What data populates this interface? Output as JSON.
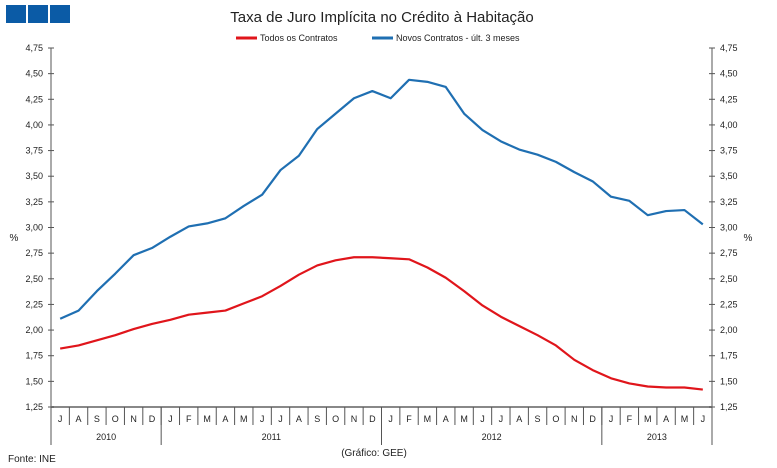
{
  "chart_data": {
    "type": "line",
    "title": "Taxa de Juro Implícita no Crédito à Habitação",
    "ylabel_left": "%",
    "ylabel_right": "%",
    "ylim": [
      1.25,
      4.75
    ],
    "yticks": [
      "1,25",
      "1,50",
      "1,75",
      "2,00",
      "2,25",
      "2,50",
      "2,75",
      "3,00",
      "3,25",
      "3,50",
      "3,75",
      "4,00",
      "4,25",
      "4,50",
      "4,75"
    ],
    "months": [
      "J",
      "A",
      "S",
      "O",
      "N",
      "D",
      "J",
      "F",
      "M",
      "A",
      "M",
      "J",
      "J",
      "A",
      "S",
      "O",
      "N",
      "D",
      "J",
      "F",
      "M",
      "A",
      "M",
      "J",
      "J",
      "A",
      "S",
      "O",
      "N",
      "D",
      "J",
      "F",
      "M",
      "A",
      "M",
      "J"
    ],
    "years": [
      {
        "label": "2010",
        "count": 6
      },
      {
        "label": "2011",
        "count": 12
      },
      {
        "label": "2012",
        "count": 12
      },
      {
        "label": "2013",
        "count": 6
      }
    ],
    "legend_position": "top-center",
    "series": [
      {
        "name": "Todos os Contratos",
        "color": "#e0151b",
        "values": [
          1.82,
          1.85,
          1.9,
          1.95,
          2.01,
          2.06,
          2.1,
          2.15,
          2.17,
          2.19,
          2.26,
          2.33,
          2.43,
          2.54,
          2.63,
          2.68,
          2.71,
          2.71,
          2.7,
          2.69,
          2.61,
          2.51,
          2.38,
          2.24,
          2.13,
          2.04,
          1.95,
          1.85,
          1.71,
          1.61,
          1.53,
          1.48,
          1.45,
          1.44,
          1.44,
          1.42
        ]
      },
      {
        "name": "Novos Contratos - últ. 3 meses",
        "color": "#1f6fb2",
        "values": [
          2.11,
          2.19,
          2.38,
          2.55,
          2.73,
          2.8,
          2.91,
          3.01,
          3.04,
          3.09,
          3.21,
          3.32,
          3.56,
          3.7,
          3.96,
          4.11,
          4.26,
          4.33,
          4.26,
          4.44,
          4.42,
          4.37,
          4.11,
          3.95,
          3.84,
          3.76,
          3.71,
          3.64,
          3.54,
          3.45,
          3.3,
          3.26,
          3.12,
          3.16,
          3.17,
          3.03
        ]
      }
    ]
  },
  "footer": {
    "source": "Fonte: INE",
    "credit": "(Gráfico: GEE)"
  },
  "colors": {
    "logo": "#0b5ba6"
  }
}
